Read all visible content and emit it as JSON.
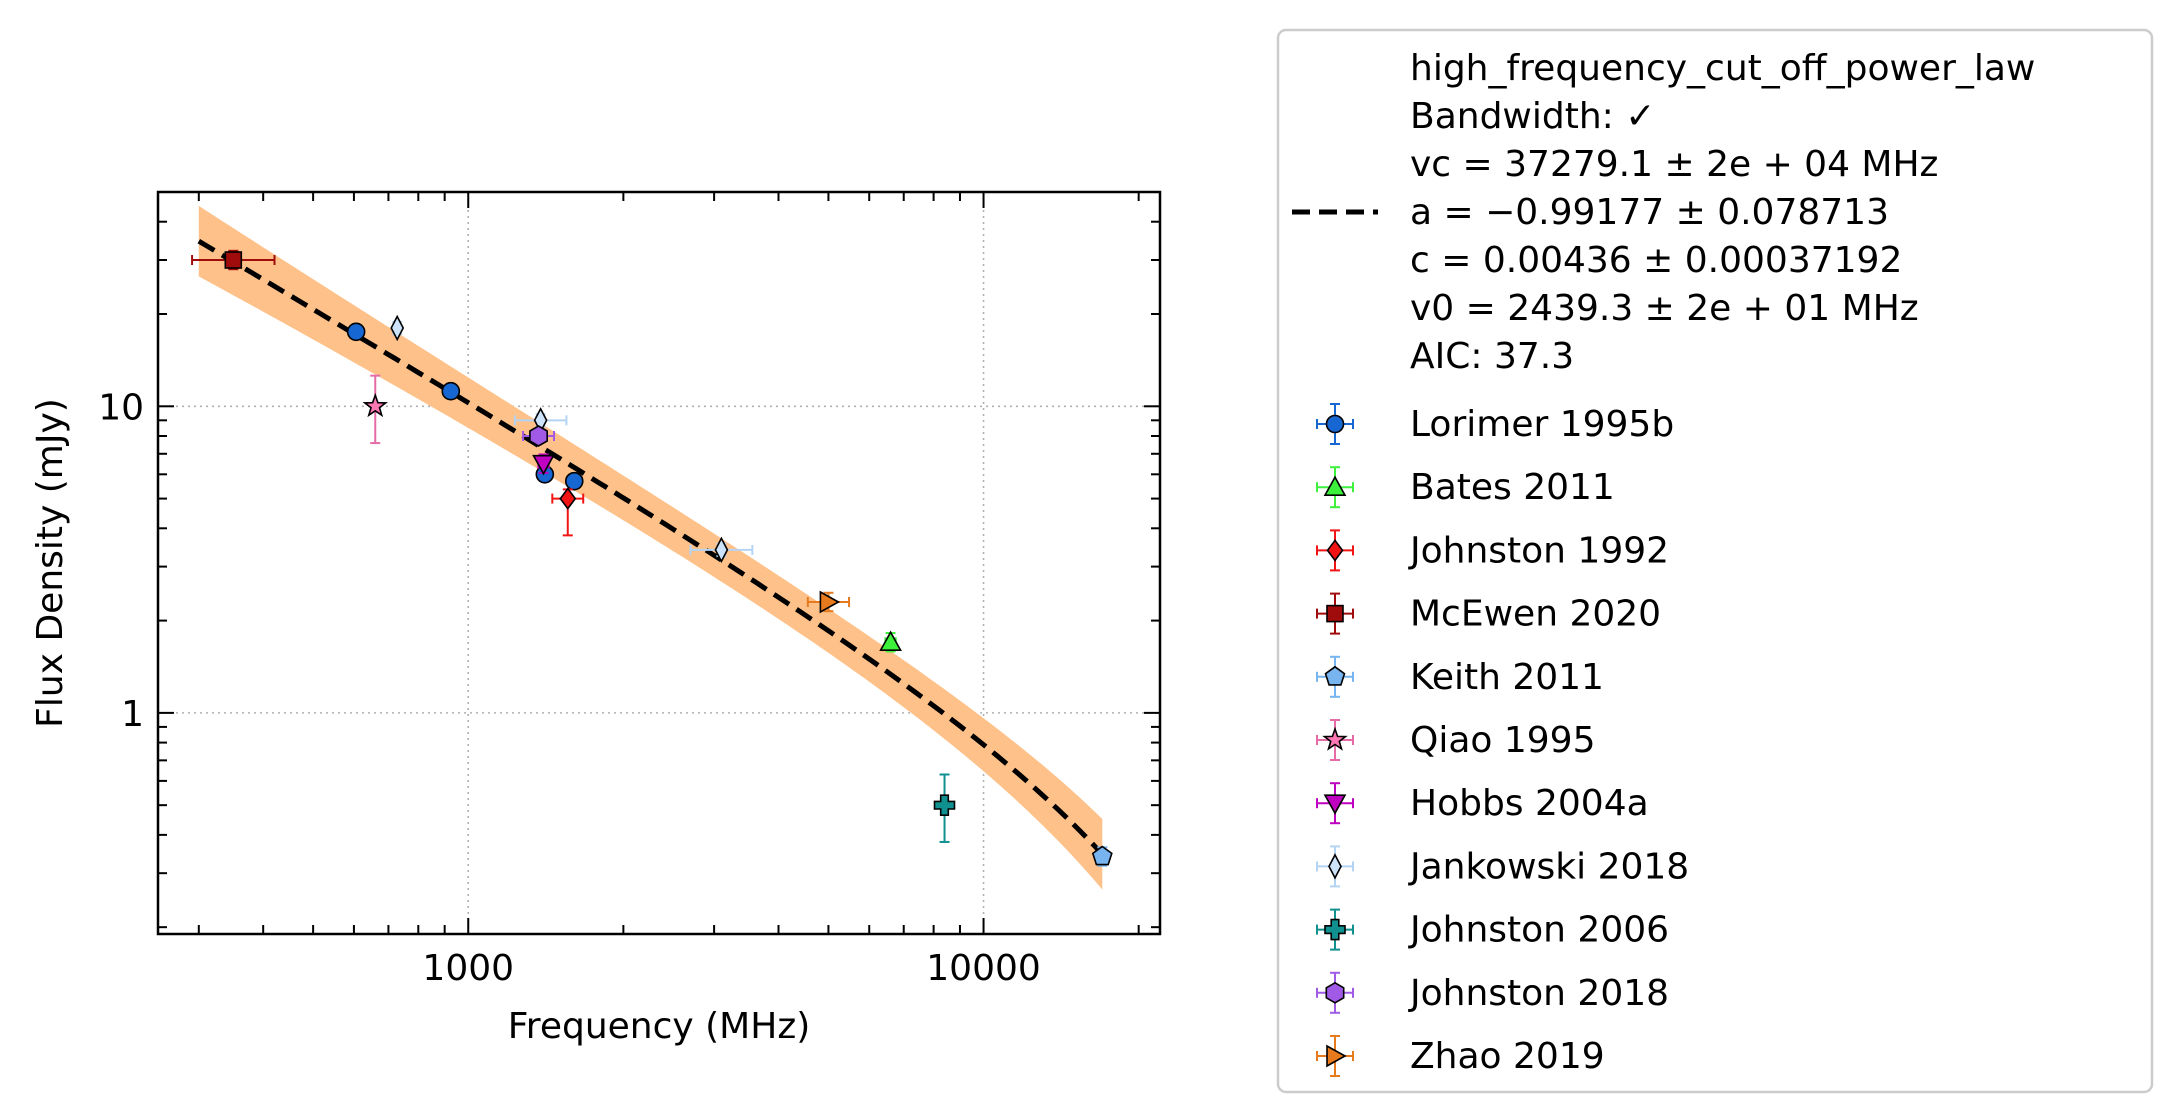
{
  "chart_data": {
    "type": "scatter",
    "xlabel": "Frequency (MHz)",
    "ylabel": "Flux Density (mJy)",
    "x_scale": "log",
    "y_scale": "log",
    "xlim": [
      250,
      22000
    ],
    "ylim": [
      0.19,
      50
    ],
    "x_ticks": [
      1000,
      10000
    ],
    "x_tick_labels": [
      "1000",
      "10000"
    ],
    "y_ticks": [
      1,
      10
    ],
    "y_tick_labels": [
      "1",
      "10"
    ],
    "grid": true,
    "legend_position": "outside-right",
    "fit": {
      "model": "high_frequency_cut_off_power_law",
      "label_lines": [
        "high_frequency_cut_off_power_law",
        "Bandwidth: ✓",
        "vc = 37279.1 ± 2e + 04 MHz",
        "a = −0.99177 ± 0.078713",
        "c = 0.00436 ± 0.00037192",
        "v0 = 2439.3 ± 2e + 01 MHz",
        "AIC: 37.3"
      ],
      "vc": 37279.1,
      "a": -0.99177,
      "c": 0.00436,
      "v0": 2439.3,
      "x_range": [
        300,
        17000
      ],
      "line_color": "#000000",
      "band_color": "#fdc189"
    },
    "series": [
      {
        "name": "Lorimer 1995b",
        "marker": "circle",
        "color": "#1767d2",
        "ecolor": "#1767d2",
        "points": [
          {
            "x": 606,
            "y": 17.5
          },
          {
            "x": 925,
            "y": 11.2
          },
          {
            "x": 1408,
            "y": 6.0
          },
          {
            "x": 1606,
            "y": 5.7
          }
        ]
      },
      {
        "name": "Bates 2011",
        "marker": "triangle-up",
        "color": "#3cf03c",
        "ecolor": "#3cf03c",
        "points": [
          {
            "x": 6600,
            "y": 1.7
          }
        ]
      },
      {
        "name": "Johnston 1992",
        "marker": "diamond",
        "color": "#f01414",
        "ecolor": "#f01414",
        "points": [
          {
            "x": 1560,
            "y": 5.0
          }
        ]
      },
      {
        "name": "McEwen 2020",
        "marker": "square",
        "color": "#a00c0c",
        "ecolor": "#a00c0c",
        "points": [
          {
            "x": 350,
            "y": 30.0
          }
        ]
      },
      {
        "name": "Keith 2011",
        "marker": "pentagon",
        "color": "#78b4f0",
        "ecolor": "#78b4f0",
        "points": [
          {
            "x": 17000,
            "y": 0.34
          }
        ]
      },
      {
        "name": "Qiao 1995",
        "marker": "star",
        "color": "#ff78b4",
        "ecolor": "#e46ba6",
        "points": [
          {
            "x": 660,
            "y": 10.0
          }
        ]
      },
      {
        "name": "Hobbs 2004a",
        "marker": "triangle-down",
        "color": "#c000c0",
        "ecolor": "#c000c0",
        "points": [
          {
            "x": 1400,
            "y": 6.5
          }
        ]
      },
      {
        "name": "Jankowski 2018",
        "marker": "thin-diamond",
        "color": "#cde3fa",
        "ecolor": "#b4d4f4",
        "points": [
          {
            "x": 728,
            "y": 18.0
          },
          {
            "x": 1382,
            "y": 9.0
          },
          {
            "x": 3100,
            "y": 3.4
          }
        ]
      },
      {
        "name": "Johnston 2006",
        "marker": "plus",
        "color": "#119090",
        "ecolor": "#119090",
        "points": [
          {
            "x": 8400,
            "y": 0.5
          }
        ]
      },
      {
        "name": "Johnston 2018",
        "marker": "hexagon",
        "color": "#a05ae6",
        "ecolor": "#a05ae6",
        "points": [
          {
            "x": 1369,
            "y": 8.0
          }
        ]
      },
      {
        "name": "Zhao 2019",
        "marker": "triangle-right",
        "color": "#e87a1e",
        "ecolor": "#e87a1e",
        "points": [
          {
            "x": 5000,
            "y": 2.3
          }
        ]
      }
    ]
  }
}
